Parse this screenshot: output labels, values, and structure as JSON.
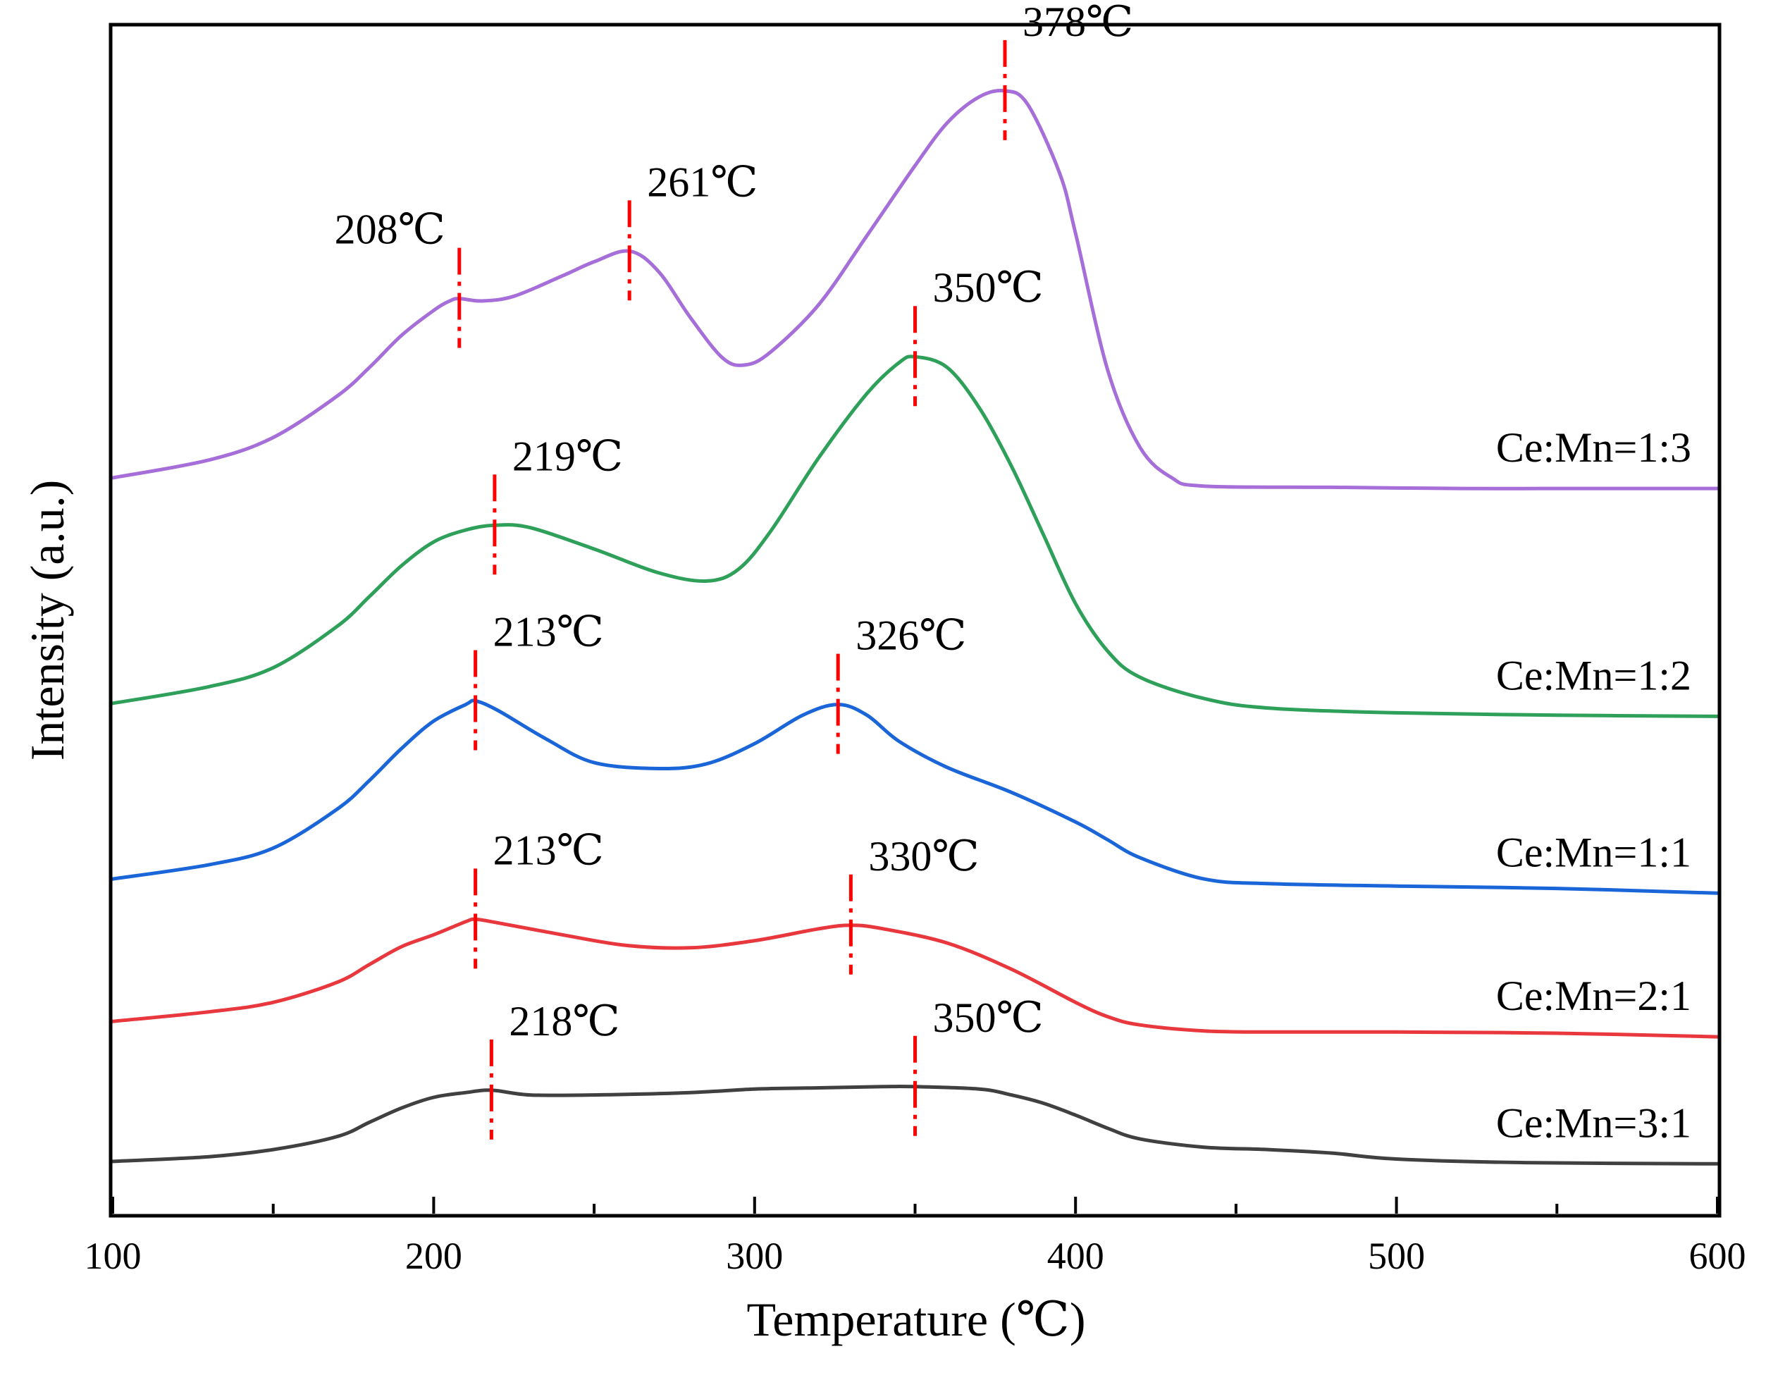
{
  "chart_data": {
    "type": "line",
    "title": "",
    "xlabel": "Temperature (℃)",
    "ylabel": "Intensity (a.u.)",
    "xlim": [
      100,
      600
    ],
    "xticks": [
      100,
      200,
      300,
      400,
      500,
      600
    ],
    "xtick_labels": [
      "100",
      "200",
      "300",
      "400",
      "500",
      "600"
    ],
    "x_minor_ticks": [
      150,
      250,
      350,
      450,
      550
    ],
    "ylim": [
      0,
      100
    ],
    "yticks_shown": false,
    "grid": false,
    "legend": "none (series labelled inline at right)",
    "series": [
      {
        "name": "Ce:Mn=3:1",
        "color": "#404040",
        "points": [
          [
            100,
            4.4
          ],
          [
            130,
            4.8
          ],
          [
            150,
            5.4
          ],
          [
            170,
            6.5
          ],
          [
            180,
            7.7
          ],
          [
            190,
            8.9
          ],
          [
            200,
            9.8
          ],
          [
            210,
            10.2
          ],
          [
            218,
            10.4
          ],
          [
            230,
            10.0
          ],
          [
            250,
            10.0
          ],
          [
            280,
            10.2
          ],
          [
            300,
            10.5
          ],
          [
            320,
            10.6
          ],
          [
            340,
            10.7
          ],
          [
            350,
            10.7
          ],
          [
            370,
            10.5
          ],
          [
            380,
            10.0
          ],
          [
            390,
            9.3
          ],
          [
            400,
            8.3
          ],
          [
            410,
            7.2
          ],
          [
            420,
            6.3
          ],
          [
            440,
            5.6
          ],
          [
            460,
            5.4
          ],
          [
            480,
            5.1
          ],
          [
            500,
            4.6
          ],
          [
            540,
            4.3
          ],
          [
            600,
            4.2
          ]
        ],
        "peaks": [
          {
            "x": 218,
            "label": "218℃"
          },
          {
            "x": 350,
            "label": "350℃"
          }
        ]
      },
      {
        "name": "Ce:Mn=2:1",
        "color": "#e8383d",
        "points": [
          [
            100,
            16.2
          ],
          [
            130,
            17.0
          ],
          [
            150,
            17.8
          ],
          [
            170,
            19.5
          ],
          [
            180,
            21.0
          ],
          [
            190,
            22.5
          ],
          [
            200,
            23.5
          ],
          [
            210,
            24.6
          ],
          [
            213,
            24.8
          ],
          [
            220,
            24.5
          ],
          [
            240,
            23.5
          ],
          [
            260,
            22.6
          ],
          [
            280,
            22.4
          ],
          [
            300,
            23.0
          ],
          [
            320,
            24.0
          ],
          [
            330,
            24.3
          ],
          [
            340,
            24.0
          ],
          [
            360,
            22.8
          ],
          [
            380,
            20.6
          ],
          [
            400,
            17.8
          ],
          [
            410,
            16.6
          ],
          [
            420,
            15.9
          ],
          [
            440,
            15.4
          ],
          [
            460,
            15.3
          ],
          [
            500,
            15.3
          ],
          [
            550,
            15.2
          ],
          [
            600,
            14.9
          ]
        ],
        "peaks": [
          {
            "x": 213,
            "label": "213℃"
          },
          {
            "x": 330,
            "label": "330℃"
          }
        ]
      },
      {
        "name": "Ce:Mn=1:1",
        "color": "#1a66d9",
        "points": [
          [
            100,
            28.2
          ],
          [
            130,
            29.4
          ],
          [
            150,
            30.8
          ],
          [
            170,
            34.1
          ],
          [
            180,
            36.5
          ],
          [
            190,
            39.2
          ],
          [
            200,
            41.5
          ],
          [
            210,
            42.9
          ],
          [
            213,
            43.2
          ],
          [
            220,
            42.4
          ],
          [
            235,
            40.0
          ],
          [
            250,
            38.0
          ],
          [
            270,
            37.5
          ],
          [
            285,
            37.9
          ],
          [
            300,
            39.6
          ],
          [
            315,
            42.0
          ],
          [
            326,
            42.9
          ],
          [
            335,
            42.0
          ],
          [
            345,
            39.8
          ],
          [
            360,
            37.6
          ],
          [
            380,
            35.5
          ],
          [
            400,
            33.0
          ],
          [
            410,
            31.5
          ],
          [
            420,
            30.0
          ],
          [
            440,
            28.2
          ],
          [
            460,
            27.8
          ],
          [
            500,
            27.6
          ],
          [
            550,
            27.4
          ],
          [
            600,
            27.0
          ]
        ],
        "peaks": [
          {
            "x": 213,
            "label": "213℃"
          },
          {
            "x": 326,
            "label": "326℃"
          }
        ]
      },
      {
        "name": "Ce:Mn=1:2",
        "color": "#2ea05a",
        "points": [
          [
            100,
            43.0
          ],
          [
            130,
            44.4
          ],
          [
            150,
            46.0
          ],
          [
            170,
            49.5
          ],
          [
            180,
            52.0
          ],
          [
            190,
            54.6
          ],
          [
            200,
            56.6
          ],
          [
            210,
            57.6
          ],
          [
            219,
            58.0
          ],
          [
            230,
            57.8
          ],
          [
            250,
            56.0
          ],
          [
            270,
            54.0
          ],
          [
            285,
            53.3
          ],
          [
            295,
            54.3
          ],
          [
            305,
            57.5
          ],
          [
            320,
            63.7
          ],
          [
            335,
            69.1
          ],
          [
            345,
            71.7
          ],
          [
            350,
            72.2
          ],
          [
            360,
            71.3
          ],
          [
            370,
            67.9
          ],
          [
            380,
            63.0
          ],
          [
            390,
            57.2
          ],
          [
            400,
            51.4
          ],
          [
            410,
            47.4
          ],
          [
            420,
            45.2
          ],
          [
            440,
            43.4
          ],
          [
            460,
            42.6
          ],
          [
            500,
            42.2
          ],
          [
            550,
            42.0
          ],
          [
            600,
            41.9
          ]
        ],
        "peaks": [
          {
            "x": 219,
            "label": "219℃"
          },
          {
            "x": 350,
            "label": "350℃"
          }
        ]
      },
      {
        "name": "Ce:Mn=1:3",
        "color": "#a66ed8",
        "points": [
          [
            100,
            62.0
          ],
          [
            130,
            63.5
          ],
          [
            150,
            65.4
          ],
          [
            170,
            68.9
          ],
          [
            180,
            71.3
          ],
          [
            190,
            74.0
          ],
          [
            200,
            76.1
          ],
          [
            205,
            76.9
          ],
          [
            208,
            77.1
          ],
          [
            215,
            76.9
          ],
          [
            225,
            77.3
          ],
          [
            240,
            79.0
          ],
          [
            250,
            80.2
          ],
          [
            261,
            81.1
          ],
          [
            270,
            79.4
          ],
          [
            280,
            75.5
          ],
          [
            290,
            72.1
          ],
          [
            297,
            71.5
          ],
          [
            305,
            72.6
          ],
          [
            320,
            76.6
          ],
          [
            335,
            82.4
          ],
          [
            350,
            88.3
          ],
          [
            360,
            91.9
          ],
          [
            370,
            94.1
          ],
          [
            378,
            94.6
          ],
          [
            385,
            93.5
          ],
          [
            395,
            87.7
          ],
          [
            400,
            82.6
          ],
          [
            410,
            71.1
          ],
          [
            420,
            64.6
          ],
          [
            430,
            62.0
          ],
          [
            440,
            61.3
          ],
          [
            480,
            61.2
          ],
          [
            520,
            61.1
          ],
          [
            560,
            61.1
          ],
          [
            600,
            61.1
          ]
        ],
        "peaks": [
          {
            "x": 208,
            "label": "208℃"
          },
          {
            "x": 261,
            "label": "261℃"
          },
          {
            "x": 378,
            "label": "378℃"
          }
        ]
      }
    ]
  }
}
